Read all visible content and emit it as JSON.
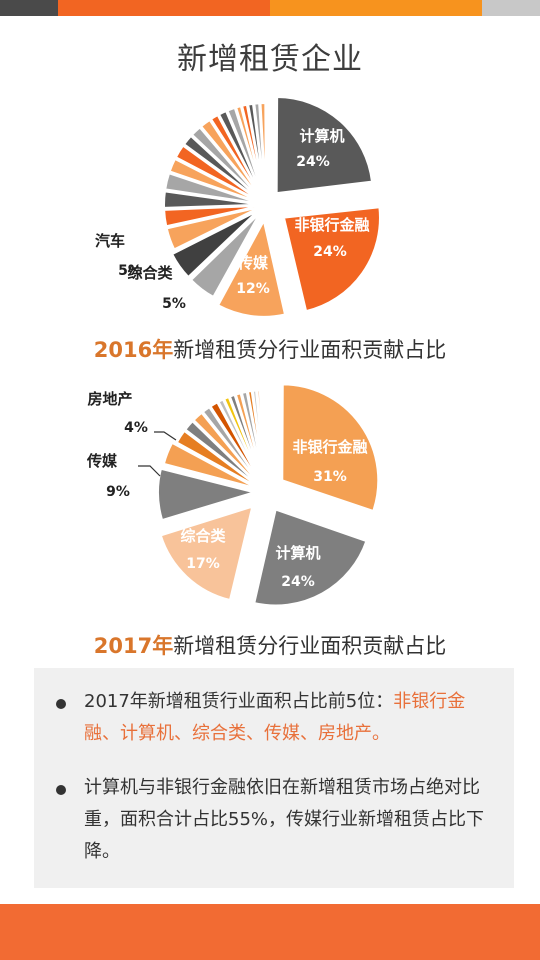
{
  "header_colors": [
    "#4a4a4a",
    "#f26522",
    "#f7931e",
    "#c8c8c8"
  ],
  "title": "新增租赁企业",
  "chart_data": [
    {
      "type": "pie",
      "title": "新增租赁分行业面积贡献占比",
      "year": "2016年",
      "labeled_slices": [
        {
          "name": "计算机",
          "value": 24,
          "label": "24%",
          "color": "#595959"
        },
        {
          "name": "非银行金融",
          "value": 24,
          "label": "24%",
          "color": "#f26522"
        },
        {
          "name": "传媒",
          "value": 12,
          "label": "12%",
          "color": "#f7a35c"
        },
        {
          "name": "综合类",
          "value": 5,
          "label": "5%",
          "color": "#a6a6a6"
        },
        {
          "name": "汽车",
          "value": 5,
          "label": "5%",
          "color": "#404040"
        }
      ],
      "other_slices": [
        4,
        3,
        3,
        3,
        2.5,
        2.5,
        2,
        2,
        2,
        1.5,
        1.5,
        1.5,
        1,
        1,
        1,
        1,
        1
      ],
      "other_colors": [
        "#f7a35c",
        "#f26522",
        "#595959",
        "#a6a6a6",
        "#f7a35c",
        "#f26522",
        "#595959",
        "#a6a6a6",
        "#f7a35c",
        "#f26522",
        "#595959",
        "#a6a6a6",
        "#f7a35c",
        "#f26522",
        "#595959",
        "#a6a6a6",
        "#f7a35c"
      ]
    },
    {
      "type": "pie",
      "title": "新增租赁分行业面积贡献占比",
      "year": "2017年",
      "labeled_slices": [
        {
          "name": "非银行金融",
          "value": 31,
          "label": "31%",
          "color": "#f4a053"
        },
        {
          "name": "计算机",
          "value": 24,
          "label": "24%",
          "color": "#7f7f7f"
        },
        {
          "name": "综合类",
          "value": 17,
          "label": "17%",
          "color": "#f8c39a"
        },
        {
          "name": "传媒",
          "value": 9,
          "label": "9%",
          "color": "#7f7f7f"
        },
        {
          "name": "房地产",
          "value": 4,
          "label": "4%",
          "color": "#f4a053"
        }
      ],
      "other_slices": [
        2.5,
        2,
        2,
        1.5,
        1.5,
        1,
        1,
        1,
        1,
        1,
        0.8,
        0.7,
        0.6,
        0.5,
        0.4
      ],
      "other_colors": [
        "#e67e22",
        "#7f7f7f",
        "#f4a053",
        "#a6a6a6",
        "#d35400",
        "#bfbfbf",
        "#f1c40f",
        "#7f7f7f",
        "#f4a053",
        "#a6a6a6",
        "#e67e22",
        "#c8c8c8",
        "#f8c39a",
        "#7f7f7f",
        "#dddddd"
      ]
    }
  ],
  "notes": {
    "note1_prefix": "2017年新增租赁行业面积占比前5位：",
    "note1_highlight": "非银行金融、计算机、综合类、传媒、房地产。",
    "note2": "计算机与非银行金融依旧在新增租赁市场占绝对比重，面积合计占比55%，传媒行业新增租赁占比下降。"
  },
  "footer_color": "#f26b33"
}
